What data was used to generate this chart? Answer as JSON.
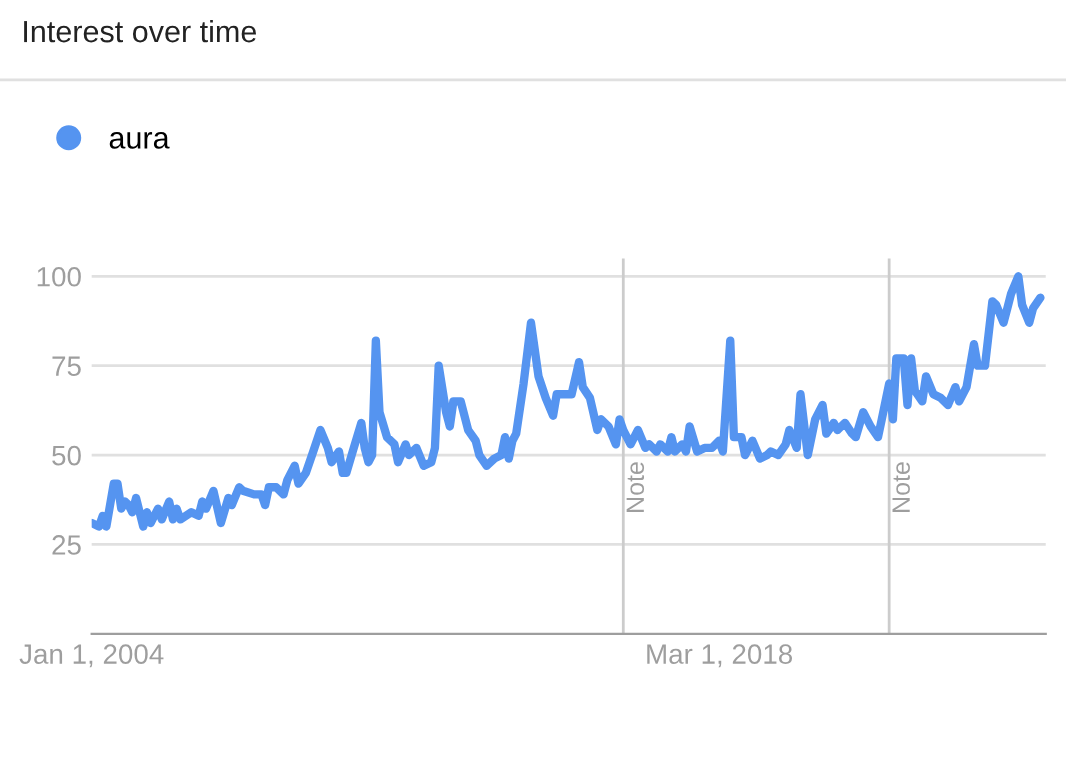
{
  "chart_data": {
    "type": "line",
    "title": "Interest over time",
    "x": [
      "2004-01",
      "2004-03",
      "2004-04",
      "2004-05",
      "2004-07",
      "2004-08",
      "2004-09",
      "2004-10",
      "2004-11",
      "2004-12",
      "2005-01",
      "2005-03",
      "2005-04",
      "2005-05",
      "2005-07",
      "2005-08",
      "2005-10",
      "2005-11",
      "2005-12",
      "2006-01",
      "2006-04",
      "2006-06",
      "2006-07",
      "2006-08",
      "2006-10",
      "2006-12",
      "2007-02",
      "2007-03",
      "2007-05",
      "2007-06",
      "2007-09",
      "2007-11",
      "2007-12",
      "2008-01",
      "2008-03",
      "2008-05",
      "2008-06",
      "2008-08",
      "2008-09",
      "2008-11",
      "2009-01",
      "2009-03",
      "2009-05",
      "2009-06",
      "2009-08",
      "2009-09",
      "2009-10",
      "2009-12",
      "2010-02",
      "2010-03",
      "2010-04",
      "2010-05",
      "2010-06",
      "2010-07",
      "2010-09",
      "2010-11",
      "2010-12",
      "2011-02",
      "2011-03",
      "2011-05",
      "2011-07",
      "2011-09",
      "2011-10",
      "2011-11",
      "2012-01",
      "2012-02",
      "2012-03",
      "2012-05",
      "2012-07",
      "2012-09",
      "2012-10",
      "2012-12",
      "2013-02",
      "2013-04",
      "2013-05",
      "2013-06",
      "2013-07",
      "2013-08",
      "2013-10",
      "2013-12",
      "2014-02",
      "2014-04",
      "2014-06",
      "2014-07",
      "2014-09",
      "2014-11",
      "2015-01",
      "2015-02",
      "2015-04",
      "2015-06",
      "2015-07",
      "2015-09",
      "2015-11",
      "2015-12",
      "2016-01",
      "2016-03",
      "2016-05",
      "2016-07",
      "2016-08",
      "2016-10",
      "2016-11",
      "2017-01",
      "2017-02",
      "2017-03",
      "2017-05",
      "2017-06",
      "2017-07",
      "2017-09",
      "2017-11",
      "2018-01",
      "2018-03",
      "2018-04",
      "2018-06",
      "2018-07",
      "2018-09",
      "2018-10",
      "2018-12",
      "2019-02",
      "2019-04",
      "2019-05",
      "2019-07",
      "2019-09",
      "2019-10",
      "2019-12",
      "2020-01",
      "2020-03",
      "2020-05",
      "2020-07",
      "2020-08",
      "2020-10",
      "2020-11",
      "2021-01",
      "2021-03",
      "2021-04",
      "2021-06",
      "2021-08",
      "2021-10",
      "2021-11",
      "2022-01",
      "2022-02",
      "2022-03",
      "2022-05",
      "2022-06",
      "2022-07",
      "2022-08",
      "2022-10",
      "2022-11",
      "2023-01",
      "2023-03",
      "2023-05",
      "2023-07",
      "2023-08",
      "2023-10",
      "2023-12",
      "2024-01",
      "2024-03",
      "2024-05",
      "2024-06",
      "2024-08",
      "2024-09",
      "2024-10",
      "2024-12",
      "2025-01",
      "2025-03",
      "2025-04",
      "2025-06"
    ],
    "series": [
      {
        "name": "aura",
        "color": "#5594f0",
        "values": [
          31,
          30,
          33,
          30,
          42,
          42,
          35,
          37,
          36,
          34,
          38,
          30,
          34,
          31,
          35,
          32,
          37,
          32,
          35,
          32,
          34,
          33,
          37,
          35,
          40,
          31,
          38,
          36,
          41,
          40,
          39,
          39,
          36,
          41,
          41,
          39,
          43,
          47,
          42,
          45,
          51,
          57,
          52,
          48,
          51,
          45,
          45,
          52,
          59,
          52,
          48,
          50,
          82,
          62,
          55,
          53,
          48,
          53,
          50,
          52,
          47,
          48,
          52,
          75,
          62,
          58,
          65,
          65,
          57,
          54,
          50,
          47,
          49,
          50,
          55,
          49,
          54,
          56,
          70,
          87,
          72,
          66,
          61,
          67,
          67,
          67,
          76,
          69,
          66,
          57,
          60,
          58,
          53,
          60,
          57,
          53,
          57,
          52,
          53,
          51,
          53,
          51,
          55,
          51,
          53,
          51,
          58,
          51,
          52,
          52,
          54,
          51,
          82,
          55,
          55,
          50,
          54,
          49,
          50,
          51,
          50,
          53,
          57,
          52,
          67,
          50,
          60,
          64,
          56,
          59,
          57,
          59,
          56,
          55,
          62,
          58,
          55,
          60,
          70,
          60,
          77,
          77,
          64,
          77,
          68,
          65,
          72,
          67,
          66,
          64,
          69,
          65,
          69,
          81,
          75,
          75,
          93,
          92,
          87,
          91,
          95,
          100,
          92,
          87,
          91,
          94
        ]
      }
    ],
    "xlim": [
      "2004-01-01",
      "2025-07-15"
    ],
    "xticks": [
      {
        "value": "2004-01-01",
        "label": "Jan 1, 2004"
      },
      {
        "value": "2018-03-01",
        "label": "Mar 1, 2018"
      }
    ],
    "ylim": [
      0,
      105
    ],
    "yticks": [
      25,
      50,
      75,
      100
    ],
    "grid": "y",
    "legend": "top left",
    "ref_lines": [
      {
        "axis": "x",
        "value": "2016-01-01",
        "label": "Note",
        "color": "#cccccc"
      },
      {
        "axis": "x",
        "value": "2022-01-01",
        "label": "Note",
        "color": "#cccccc"
      }
    ]
  }
}
